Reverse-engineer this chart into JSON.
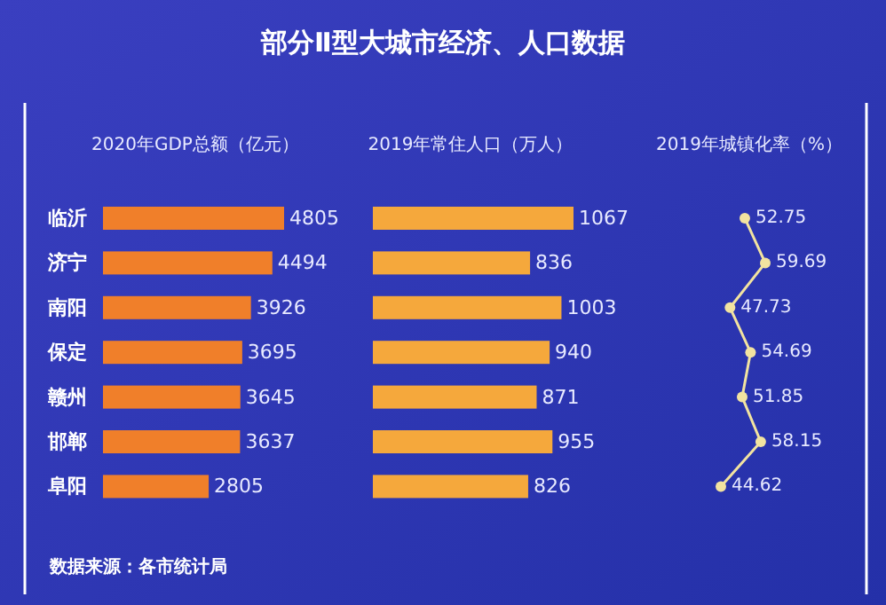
{
  "chart_data": [
    {
      "type": "other",
      "title": "部分Ⅱ型大城市经济、人口数据",
      "annotations": [
        "数据来源：各市统计局"
      ]
    },
    {
      "type": "bar",
      "orientation": "horizontal",
      "title": "2020年GDP总额（亿元）",
      "categories": [
        "临沂",
        "济宁",
        "南阳",
        "保定",
        "赣州",
        "邯郸",
        "阜阳"
      ],
      "values": [
        4805,
        4494,
        3926,
        3695,
        3645,
        3637,
        2805
      ],
      "color": "#f07f2a",
      "data_labels": true
    },
    {
      "type": "bar",
      "orientation": "horizontal",
      "title": "2019年常住人口（万人）",
      "values": [
        1067,
        836,
        1003,
        940,
        871,
        955,
        826
      ],
      "color": "#f5a83c",
      "data_labels": true
    },
    {
      "type": "line",
      "orientation": "horizontal",
      "title": "2019年城镇化率（%）",
      "values": [
        52.75,
        59.69,
        47.73,
        54.69,
        51.85,
        58.15,
        44.62
      ],
      "color": "#f2e3a0",
      "marker": "circle",
      "data_labels": true
    }
  ]
}
